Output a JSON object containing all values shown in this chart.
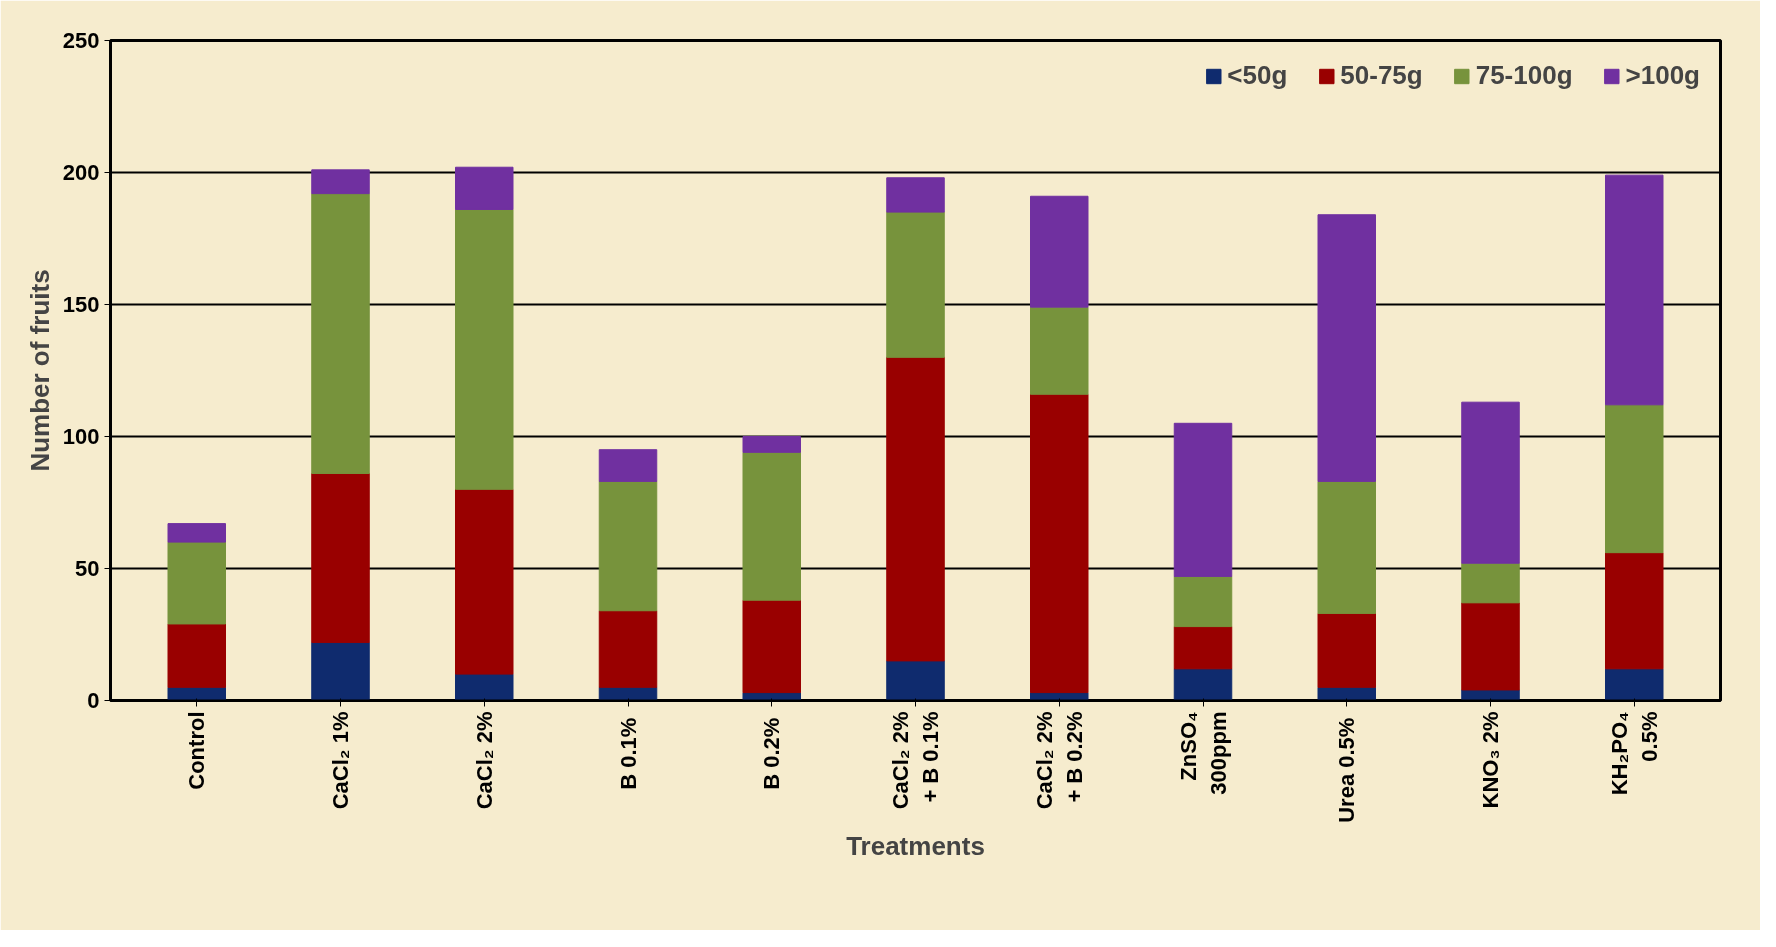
{
  "chart_data": {
    "type": "bar",
    "stacked": true,
    "xlabel": "Treatments",
    "ylabel": "Number of fruits",
    "categories": [
      "Control",
      "CaCl₂ 1%",
      "CaCl₂ 2%",
      "B  0.1%",
      "B  0.2%",
      "CaCl₂ 2%\n+ B 0.1%",
      "CaCl₂ 2%\n+ B 0.2%",
      "ZnSO₄\n300ppm",
      "Urea  0.5%",
      "KNO₃ 2%",
      "KH₂PO₄\n0.5%"
    ],
    "series": [
      {
        "name": "<50g",
        "color": "#0f2b6e",
        "values": [
          5,
          22,
          10,
          5,
          3,
          15,
          3,
          12,
          5,
          4,
          12
        ]
      },
      {
        "name": "50-75g",
        "color": "#990000",
        "values": [
          24,
          64,
          70,
          29,
          35,
          115,
          113,
          16,
          28,
          33,
          44
        ]
      },
      {
        "name": "75-100g",
        "color": "#77933c",
        "values": [
          31,
          106,
          106,
          49,
          56,
          55,
          33,
          19,
          50,
          15,
          56
        ]
      },
      {
        "name": ">100g",
        "color": "#7030a0",
        "values": [
          7,
          9,
          16,
          12,
          6,
          13,
          42,
          58,
          101,
          61,
          87
        ]
      }
    ],
    "ylim": [
      0,
      250
    ],
    "yticks": [
      0,
      50,
      100,
      150,
      200,
      250
    ],
    "grid": "y",
    "legend": "top right"
  }
}
